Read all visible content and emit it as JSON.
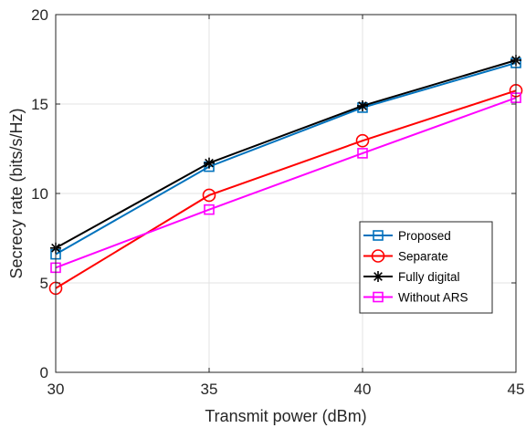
{
  "chart_data": {
    "type": "line",
    "title": "",
    "xlabel": "Transmit power (dBm)",
    "ylabel": "Secrecy rate (bits/s/Hz)",
    "x": [
      30,
      35,
      40,
      45
    ],
    "xlim": [
      30,
      45
    ],
    "ylim": [
      0,
      20
    ],
    "xticks": [
      30,
      35,
      40,
      45
    ],
    "yticks": [
      0,
      5,
      10,
      15,
      20
    ],
    "grid": true,
    "legend_position": "center-right",
    "series": [
      {
        "name": "Proposed",
        "values": [
          6.6,
          11.5,
          14.8,
          17.3
        ],
        "color": "#0072BD",
        "marker": "square"
      },
      {
        "name": "Separate",
        "values": [
          4.7,
          9.9,
          12.95,
          15.75
        ],
        "color": "#FF0000",
        "marker": "circle"
      },
      {
        "name": "Fully digital",
        "values": [
          6.95,
          11.7,
          14.9,
          17.45
        ],
        "color": "#000000",
        "marker": "asterisk"
      },
      {
        "name": "Without ARS",
        "values": [
          5.85,
          9.1,
          12.25,
          15.35
        ],
        "color": "#FF00FF",
        "marker": "square"
      }
    ]
  }
}
